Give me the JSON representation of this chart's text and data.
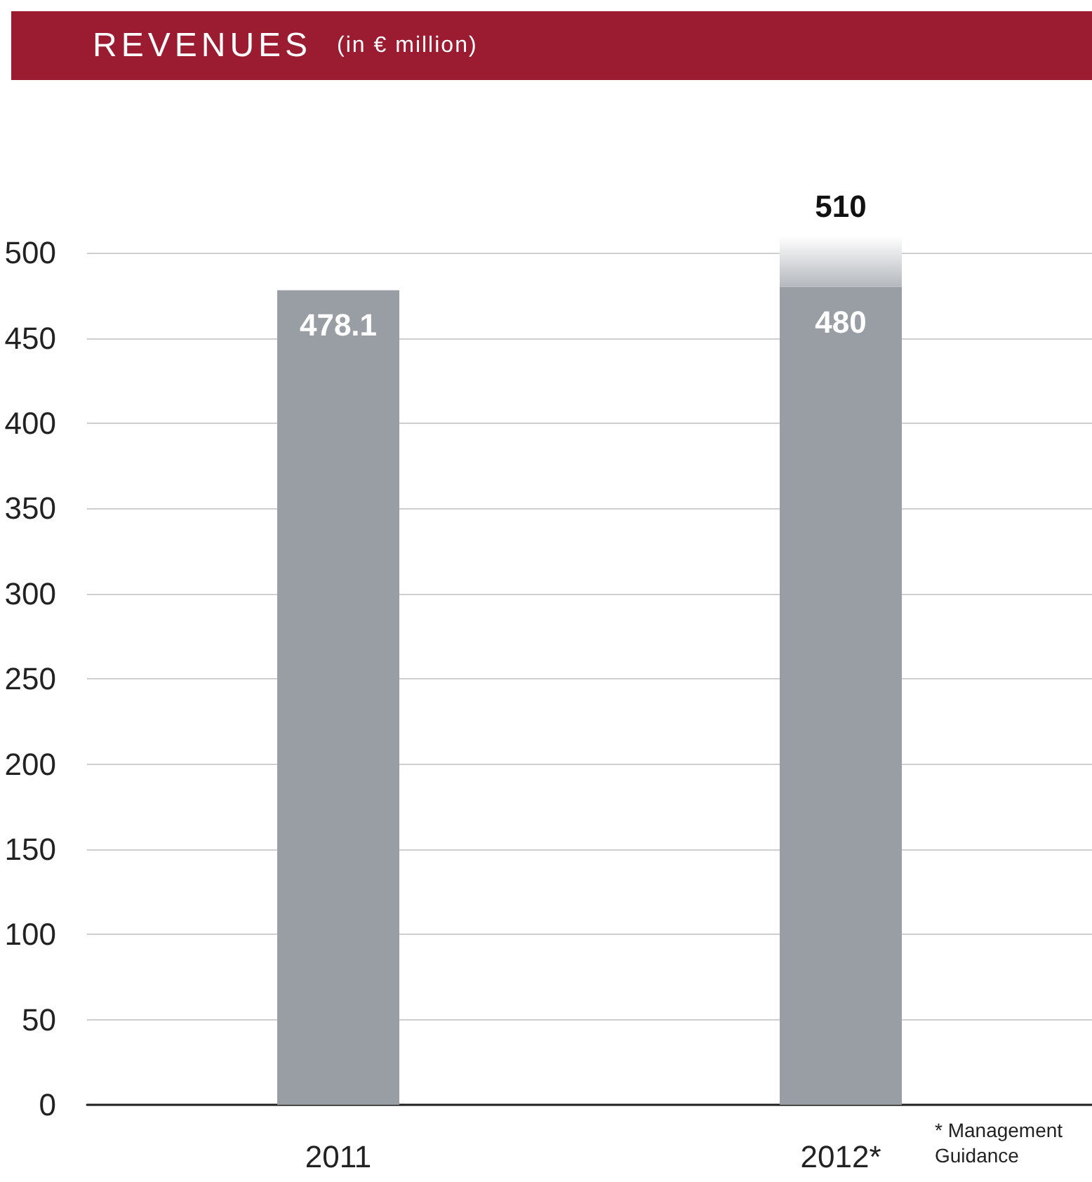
{
  "chart_data": {
    "type": "bar",
    "title": "REVENUES",
    "subtitle": "(in € million)",
    "categories": [
      "2011",
      "2012*"
    ],
    "stacked": true,
    "series": [
      {
        "color": "#999ea5",
        "values": [
          478.1,
          480
        ],
        "value_labels": [
          "478.1",
          "480"
        ]
      },
      {
        "color": "#b4b8bd",
        "values": [
          null,
          30
        ]
      }
    ],
    "totals": [
      null,
      "510"
    ],
    "ylim": [
      0,
      510
    ],
    "yticks": [
      0,
      50,
      100,
      150,
      200,
      250,
      300,
      350,
      400,
      450,
      500
    ],
    "grid": "y",
    "annotations": [
      "* Management Guidance"
    ]
  }
}
